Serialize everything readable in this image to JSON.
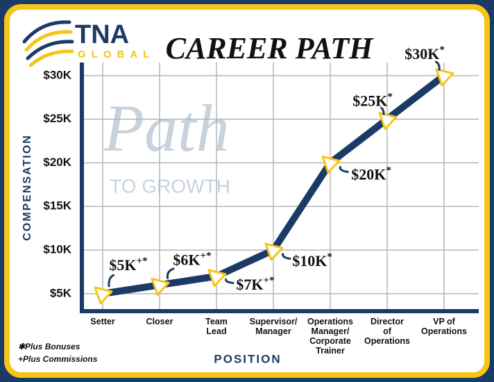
{
  "logo": {
    "name": "TNA",
    "sub": "GLOBAL"
  },
  "chart_data": {
    "type": "line",
    "title": "CAREER PATH",
    "watermark": {
      "word": "Path",
      "sub": "TO GROWTH"
    },
    "x_label": "POSITION",
    "y_label": "COMPENSATION",
    "categories": [
      "Setter",
      "Closer",
      "Team\nLead",
      "Supervisor/\nManager",
      "Operations\nManager/\nCorporate\nTrainer",
      "Director\nof\nOperations",
      "VP of\nOperations"
    ],
    "series": [
      {
        "name": "Compensation",
        "color": "#1b3a66",
        "values": [
          5000,
          6000,
          7000,
          10000,
          20000,
          25000,
          30000
        ],
        "value_labels": [
          "$5K+*",
          "$6K+*",
          "$7K+*",
          "$10K*",
          "$20K*",
          "$25K*",
          "$30K*"
        ]
      }
    ],
    "marker_color": "#f5c518",
    "ylim": [
      3000,
      31500
    ],
    "yticks": [
      {
        "value": 5000,
        "label": "$5K"
      },
      {
        "value": 10000,
        "label": "$10K"
      },
      {
        "value": 15000,
        "label": "$15K"
      },
      {
        "value": 20000,
        "label": "$20K"
      },
      {
        "value": 25000,
        "label": "$25K"
      },
      {
        "value": 30000,
        "label": "$30K"
      }
    ],
    "grid": true,
    "notes": [
      "✱Plus Bonuses",
      "+Plus Commissions"
    ]
  }
}
